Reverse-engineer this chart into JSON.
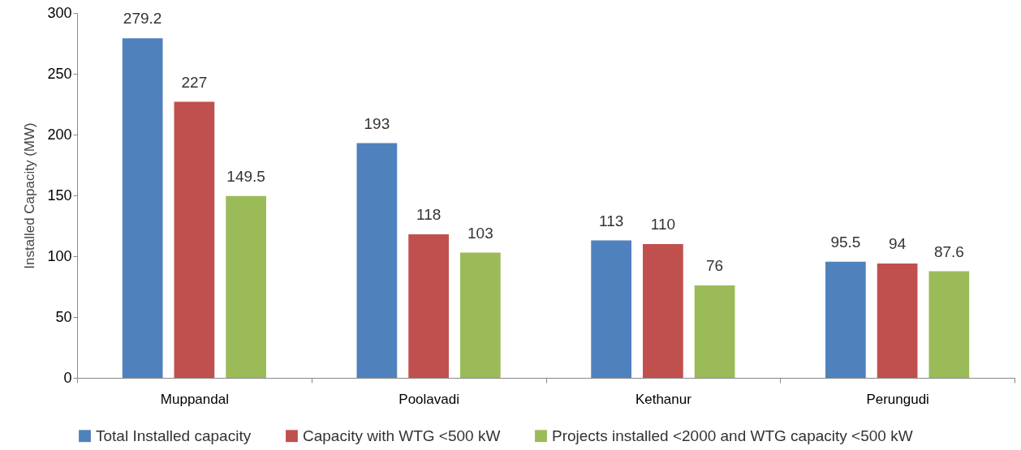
{
  "chart_data": {
    "type": "bar",
    "ylabel": "Installed Capacity (MW)",
    "categories": [
      "Muppandal",
      "Poolavadi",
      "Kethanur",
      "Perungudi"
    ],
    "series": [
      {
        "name": "Total Installed capacity",
        "color": "#4f81bd",
        "values": [
          279.2,
          193,
          113,
          95.5
        ]
      },
      {
        "name": "Capacity with WTG <500 kW",
        "color": "#c0504d",
        "values": [
          227,
          118,
          110,
          94
        ]
      },
      {
        "name": "Projects installed <2000 and WTG capacity <500 kW",
        "color": "#9bbb59",
        "values": [
          149.5,
          103,
          76,
          87.6
        ]
      }
    ],
    "ylim": [
      0,
      300
    ],
    "yticks": [
      0,
      50,
      100,
      150,
      200,
      250,
      300
    ],
    "grid": false,
    "legend": "bottom",
    "data_labels": true
  }
}
